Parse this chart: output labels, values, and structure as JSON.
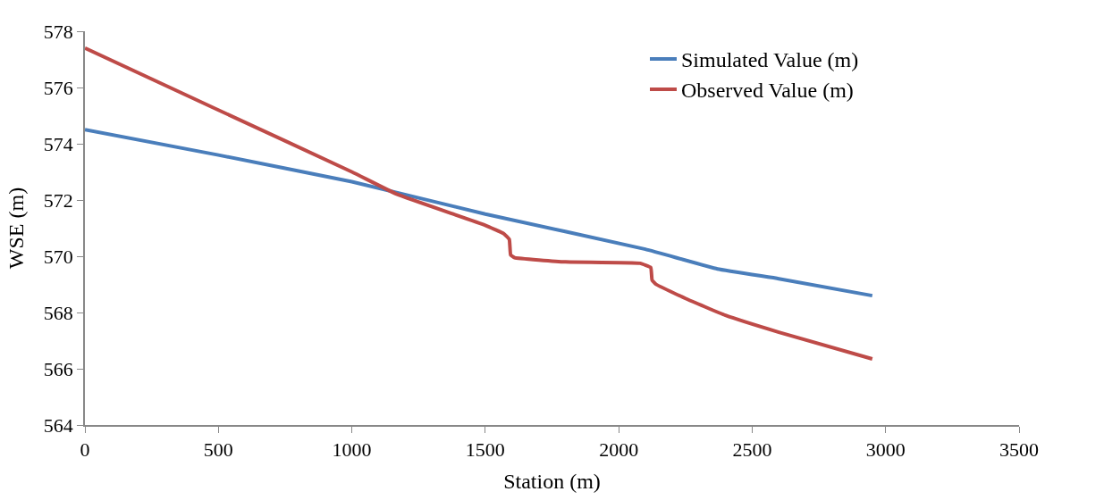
{
  "chart_data": {
    "type": "line",
    "xlabel": "Station (m)",
    "ylabel": "WSE (m)",
    "xlim": [
      0,
      3500
    ],
    "xticks": [
      0,
      500,
      1000,
      1500,
      2000,
      2500,
      3000,
      3500
    ],
    "ylim": [
      564,
      578
    ],
    "yticks": [
      564,
      566,
      568,
      570,
      572,
      574,
      576,
      578
    ],
    "grid": false,
    "legend": "top right",
    "marker": "none",
    "line_style": "solid",
    "series": [
      {
        "name": "Simulated Value (m)",
        "color": "#4a7ebb",
        "x": [
          0,
          500,
          1000,
          1500,
          2100,
          2370,
          2600,
          2950
        ],
        "values": [
          574.5,
          573.6,
          572.65,
          571.5,
          570.25,
          569.55,
          569.2,
          568.6
        ]
      },
      {
        "name": "Observed Value (m)",
        "color": "#be4b48",
        "x": [
          0,
          500,
          1000,
          1170,
          1500,
          1570,
          1590,
          1595,
          1610,
          1800,
          2080,
          2120,
          2125,
          2140,
          2250,
          2400,
          2600,
          2950
        ],
        "values": [
          577.4,
          575.2,
          573.0,
          572.2,
          571.1,
          570.8,
          570.6,
          570.05,
          569.95,
          569.8,
          569.75,
          569.6,
          569.15,
          569.0,
          568.5,
          567.9,
          567.3,
          566.35
        ]
      }
    ]
  }
}
